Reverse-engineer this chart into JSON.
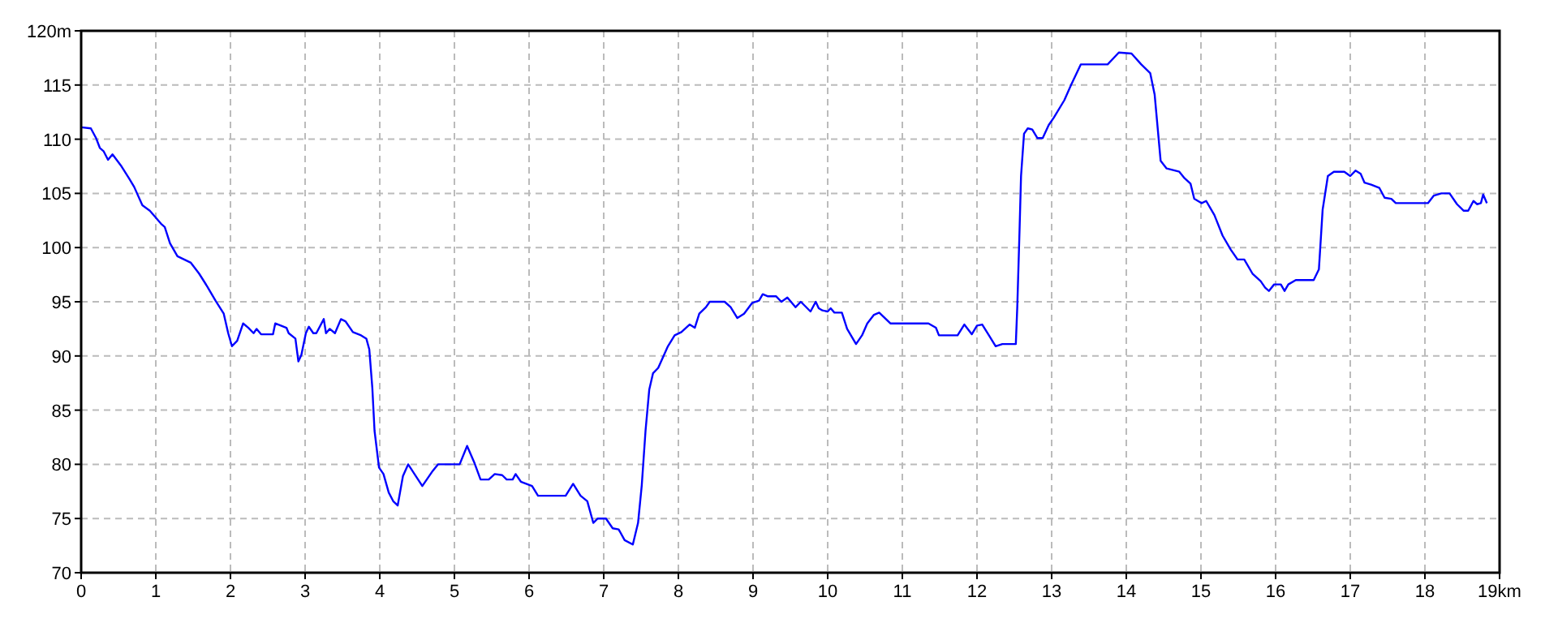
{
  "chart_data": {
    "type": "line",
    "x": [
      0,
      0.13,
      0.2,
      0.25,
      0.3,
      0.36,
      0.42,
      0.53,
      0.64,
      0.71,
      0.82,
      0.92,
      1.07,
      1.12,
      1.19,
      1.29,
      1.47,
      1.58,
      1.69,
      1.8,
      1.91,
      1.97,
      2.02,
      2.09,
      2.17,
      2.24,
      2.31,
      2.35,
      2.41,
      2.57,
      2.6,
      2.75,
      2.78,
      2.87,
      2.91,
      2.95,
      3.01,
      3.05,
      3.11,
      3.15,
      3.25,
      3.28,
      3.33,
      3.4,
      3.48,
      3.54,
      3.64,
      3.75,
      3.82,
      3.86,
      3.9,
      3.93,
      3.99,
      4.05,
      4.12,
      4.18,
      4.24,
      4.31,
      4.38,
      4.57,
      4.71,
      4.78,
      5.07,
      5.17,
      5.27,
      5.35,
      5.46,
      5.54,
      5.64,
      5.7,
      5.78,
      5.82,
      5.89,
      6.04,
      6.12,
      6.49,
      6.59,
      6.69,
      6.78,
      6.86,
      6.92,
      7.03,
      7.12,
      7.2,
      7.28,
      7.39,
      7.46,
      7.51,
      7.56,
      7.61,
      7.66,
      7.73,
      7.86,
      7.95,
      8.04,
      8.15,
      8.22,
      8.28,
      8.37,
      8.42,
      8.62,
      8.7,
      8.79,
      8.88,
      8.99,
      9.08,
      9.13,
      9.2,
      9.31,
      9.38,
      9.46,
      9.57,
      9.64,
      9.77,
      9.84,
      9.88,
      9.93,
      10,
      10.04,
      10.09,
      10.19,
      10.26,
      10.38,
      10.46,
      10.53,
      10.62,
      10.69,
      10.84,
      11.35,
      11.45,
      11.49,
      11.74,
      11.83,
      11.93,
      12,
      12.07,
      12.16,
      12.25,
      12.34,
      12.52,
      12.54,
      12.57,
      12.59,
      12.63,
      12.68,
      12.74,
      12.81,
      12.88,
      12.96,
      13.03,
      13.17,
      13.26,
      13.39,
      13.75,
      13.9,
      14.07,
      14.2,
      14.32,
      14.38,
      14.46,
      14.54,
      14.71,
      14.78,
      14.86,
      14.91,
      15.01,
      15.07,
      15.18,
      15.29,
      15.4,
      15.49,
      15.58,
      15.69,
      15.8,
      15.86,
      15.91,
      15.98,
      16.07,
      16.12,
      16.17,
      16.27,
      16.51,
      16.58,
      16.63,
      16.7,
      16.78,
      16.92,
      17,
      17.07,
      17.14,
      17.19,
      17.28,
      17.39,
      17.46,
      17.55,
      17.61,
      18.04,
      18.12,
      18.22,
      18.33,
      18.43,
      18.52,
      18.58,
      18.65,
      18.7,
      18.75,
      18.78,
      18.83
    ],
    "series": [
      {
        "color": "#0000ff",
        "values": [
          111.1,
          111,
          110.1,
          109.2,
          108.9,
          108.1,
          108.6,
          107.6,
          106.4,
          105.6,
          103.9,
          103.4,
          102.2,
          101.9,
          100.4,
          99.2,
          98.6,
          97.6,
          96.4,
          95.1,
          93.9,
          92.1,
          90.9,
          91.4,
          93,
          92.6,
          92.1,
          92.5,
          92,
          92,
          93,
          92.6,
          92.1,
          91.6,
          89.5,
          90.1,
          92.1,
          92.7,
          92.1,
          92.1,
          93.4,
          92.1,
          92.5,
          92.1,
          93.4,
          93.2,
          92.2,
          91.9,
          91.6,
          90.6,
          87.1,
          83.1,
          79.7,
          79.1,
          77.4,
          76.6,
          76.2,
          78.9,
          80,
          78,
          79.4,
          80,
          80,
          81.7,
          80.1,
          78.6,
          78.6,
          79.1,
          79,
          78.6,
          78.6,
          79.1,
          78.4,
          78,
          77.1,
          77.1,
          78.2,
          77.1,
          76.6,
          74.6,
          75,
          75,
          74.1,
          74,
          73,
          72.6,
          74.6,
          78.1,
          83.1,
          86.9,
          88.4,
          88.9,
          90.9,
          91.9,
          92.2,
          92.9,
          92.6,
          93.9,
          94.5,
          95,
          95,
          94.5,
          93.5,
          93.9,
          94.9,
          95.1,
          95.7,
          95.5,
          95.5,
          95,
          95.4,
          94.5,
          95,
          94.1,
          95,
          94.4,
          94.2,
          94.1,
          94.4,
          94,
          94,
          92.5,
          91.1,
          91.9,
          93,
          93.8,
          94,
          93,
          93,
          92.6,
          91.9,
          91.9,
          92.9,
          92,
          92.8,
          92.9,
          91.9,
          90.9,
          91.1,
          91.1,
          94.6,
          101.6,
          106.6,
          110.5,
          111,
          110.9,
          110.1,
          110.1,
          111.3,
          112,
          113.6,
          115,
          116.9,
          116.9,
          118,
          117.9,
          116.9,
          116.1,
          114.1,
          108,
          107.3,
          107,
          106.4,
          105.9,
          104.5,
          104.1,
          104.3,
          103,
          101.1,
          99.8,
          98.9,
          98.9,
          97.6,
          96.9,
          96.3,
          96,
          96.6,
          96.6,
          96,
          96.6,
          97,
          97,
          98,
          103.5,
          106.6,
          107,
          107,
          106.6,
          107.1,
          106.8,
          106,
          105.8,
          105.5,
          104.6,
          104.5,
          104.1,
          104.1,
          104.8,
          105,
          105,
          104,
          103.4,
          103.4,
          104.3,
          104,
          104.1,
          104.9,
          104.1
        ]
      }
    ],
    "xlim": [
      0,
      19
    ],
    "ylim": [
      70,
      120
    ],
    "xticks": [
      0,
      1,
      2,
      3,
      4,
      5,
      6,
      7,
      8,
      9,
      10,
      11,
      12,
      13,
      14,
      15,
      16,
      17,
      18,
      {
        "value": 19,
        "label": "19km"
      }
    ],
    "yticks": [
      70,
      75,
      80,
      85,
      90,
      95,
      100,
      105,
      110,
      115,
      {
        "value": 120,
        "label": "120m"
      }
    ],
    "grid": true,
    "marker": "none",
    "line_style": "solid"
  }
}
